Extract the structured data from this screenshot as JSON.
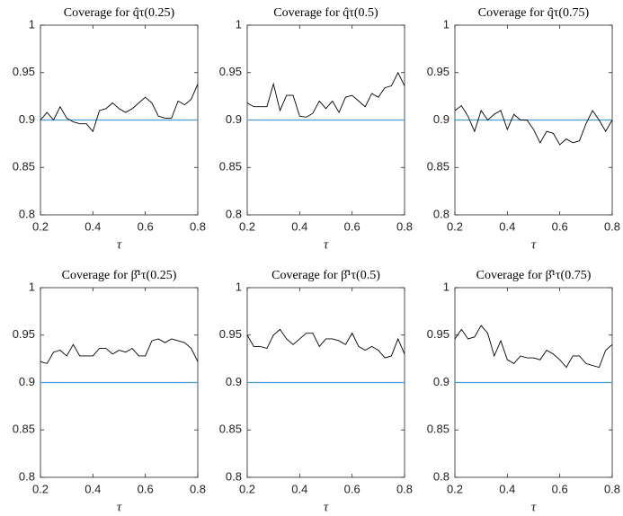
{
  "chart_data": [
    {
      "type": "line",
      "title": "Coverage for q̂τ(0.25)",
      "xlabel": "τ",
      "x": [
        0.2,
        0.225,
        0.25,
        0.275,
        0.3,
        0.325,
        0.35,
        0.375,
        0.4,
        0.425,
        0.45,
        0.475,
        0.5,
        0.525,
        0.55,
        0.575,
        0.6,
        0.625,
        0.65,
        0.675,
        0.7,
        0.725,
        0.75,
        0.775,
        0.8
      ],
      "series": [
        {
          "color": "#000000",
          "values": [
            0.9,
            0.908,
            0.9,
            0.914,
            0.902,
            0.898,
            0.896,
            0.896,
            0.888,
            0.91,
            0.912,
            0.918,
            0.912,
            0.908,
            0.912,
            0.918,
            0.924,
            0.918,
            0.904,
            0.902,
            0.902,
            0.92,
            0.916,
            0.922,
            0.938
          ]
        }
      ],
      "reference_line": {
        "value": 0.9,
        "color": "#4a9bd4"
      },
      "xlim": [
        0.2,
        0.8
      ],
      "xticks": [
        0.2,
        0.4,
        0.6,
        0.8
      ],
      "ylim": [
        0.8,
        1
      ],
      "yticks": [
        0.8,
        0.85,
        0.9,
        0.95,
        1
      ]
    },
    {
      "type": "line",
      "title": "Coverage for q̂τ(0.5)",
      "xlabel": "τ",
      "x": [
        0.2,
        0.225,
        0.25,
        0.275,
        0.3,
        0.325,
        0.35,
        0.375,
        0.4,
        0.425,
        0.45,
        0.475,
        0.5,
        0.525,
        0.55,
        0.575,
        0.6,
        0.625,
        0.65,
        0.675,
        0.7,
        0.725,
        0.75,
        0.775,
        0.8
      ],
      "series": [
        {
          "color": "#000000",
          "values": [
            0.918,
            0.914,
            0.914,
            0.914,
            0.938,
            0.91,
            0.926,
            0.926,
            0.904,
            0.903,
            0.907,
            0.92,
            0.912,
            0.92,
            0.908,
            0.924,
            0.926,
            0.92,
            0.914,
            0.928,
            0.924,
            0.934,
            0.936,
            0.95,
            0.936
          ]
        }
      ],
      "reference_line": {
        "value": 0.9,
        "color": "#4a9bd4"
      },
      "xlim": [
        0.2,
        0.8
      ],
      "xticks": [
        0.2,
        0.4,
        0.6,
        0.8
      ],
      "ylim": [
        0.8,
        1
      ],
      "yticks": [
        0.8,
        0.85,
        0.9,
        0.95,
        1
      ]
    },
    {
      "type": "line",
      "title": "Coverage for q̂τ(0.75)",
      "xlabel": "τ",
      "x": [
        0.2,
        0.225,
        0.25,
        0.275,
        0.3,
        0.325,
        0.35,
        0.375,
        0.4,
        0.425,
        0.45,
        0.475,
        0.5,
        0.525,
        0.55,
        0.575,
        0.6,
        0.625,
        0.65,
        0.675,
        0.7,
        0.725,
        0.75,
        0.775,
        0.8
      ],
      "series": [
        {
          "color": "#000000",
          "values": [
            0.91,
            0.915,
            0.904,
            0.888,
            0.91,
            0.9,
            0.906,
            0.91,
            0.89,
            0.906,
            0.9,
            0.9,
            0.89,
            0.876,
            0.888,
            0.886,
            0.874,
            0.88,
            0.876,
            0.878,
            0.896,
            0.91,
            0.9,
            0.888,
            0.9
          ]
        }
      ],
      "reference_line": {
        "value": 0.9,
        "color": "#4a9bd4"
      },
      "xlim": [
        0.2,
        0.8
      ],
      "xticks": [
        0.2,
        0.4,
        0.6,
        0.8
      ],
      "ylim": [
        0.8,
        1
      ],
      "yticks": [
        0.8,
        0.85,
        0.9,
        0.95,
        1
      ]
    },
    {
      "type": "line",
      "title": "Coverage for β̂¹τ(0.25)",
      "xlabel": "τ",
      "x": [
        0.2,
        0.225,
        0.25,
        0.275,
        0.3,
        0.325,
        0.35,
        0.375,
        0.4,
        0.425,
        0.45,
        0.475,
        0.5,
        0.525,
        0.55,
        0.575,
        0.6,
        0.625,
        0.65,
        0.675,
        0.7,
        0.725,
        0.75,
        0.775,
        0.8
      ],
      "series": [
        {
          "color": "#000000",
          "values": [
            0.922,
            0.92,
            0.932,
            0.934,
            0.928,
            0.94,
            0.928,
            0.928,
            0.928,
            0.936,
            0.936,
            0.93,
            0.934,
            0.932,
            0.936,
            0.928,
            0.928,
            0.944,
            0.946,
            0.942,
            0.946,
            0.944,
            0.942,
            0.936,
            0.922
          ]
        }
      ],
      "reference_line": {
        "value": 0.9,
        "color": "#4a9bd4"
      },
      "xlim": [
        0.2,
        0.8
      ],
      "xticks": [
        0.2,
        0.4,
        0.6,
        0.8
      ],
      "ylim": [
        0.8,
        1
      ],
      "yticks": [
        0.8,
        0.85,
        0.9,
        0.95,
        1
      ]
    },
    {
      "type": "line",
      "title": "Coverage for β̂¹τ(0.5)",
      "xlabel": "τ",
      "x": [
        0.2,
        0.225,
        0.25,
        0.275,
        0.3,
        0.325,
        0.35,
        0.375,
        0.4,
        0.425,
        0.45,
        0.475,
        0.5,
        0.525,
        0.55,
        0.575,
        0.6,
        0.625,
        0.65,
        0.675,
        0.7,
        0.725,
        0.75,
        0.775,
        0.8
      ],
      "series": [
        {
          "color": "#000000",
          "values": [
            0.95,
            0.938,
            0.938,
            0.936,
            0.95,
            0.956,
            0.946,
            0.94,
            0.946,
            0.952,
            0.952,
            0.938,
            0.946,
            0.946,
            0.944,
            0.94,
            0.952,
            0.938,
            0.934,
            0.938,
            0.934,
            0.926,
            0.928,
            0.946,
            0.93
          ]
        }
      ],
      "reference_line": {
        "value": 0.9,
        "color": "#4a9bd4"
      },
      "xlim": [
        0.2,
        0.8
      ],
      "xticks": [
        0.2,
        0.4,
        0.6,
        0.8
      ],
      "ylim": [
        0.8,
        1
      ],
      "yticks": [
        0.8,
        0.85,
        0.9,
        0.95,
        1
      ]
    },
    {
      "type": "line",
      "title": "Coverage for β̂¹τ(0.75)",
      "xlabel": "τ",
      "x": [
        0.2,
        0.225,
        0.25,
        0.275,
        0.3,
        0.325,
        0.35,
        0.375,
        0.4,
        0.425,
        0.45,
        0.475,
        0.5,
        0.525,
        0.55,
        0.575,
        0.6,
        0.625,
        0.65,
        0.675,
        0.7,
        0.725,
        0.75,
        0.775,
        0.8
      ],
      "series": [
        {
          "color": "#000000",
          "values": [
            0.946,
            0.956,
            0.946,
            0.948,
            0.96,
            0.952,
            0.928,
            0.944,
            0.924,
            0.92,
            0.928,
            0.926,
            0.926,
            0.924,
            0.934,
            0.93,
            0.924,
            0.916,
            0.928,
            0.928,
            0.92,
            0.918,
            0.916,
            0.934,
            0.94
          ]
        }
      ],
      "reference_line": {
        "value": 0.9,
        "color": "#4a9bd4"
      },
      "xlim": [
        0.2,
        0.8
      ],
      "xticks": [
        0.2,
        0.4,
        0.6,
        0.8
      ],
      "ylim": [
        0.8,
        1
      ],
      "yticks": [
        0.8,
        0.85,
        0.9,
        0.95,
        1
      ]
    }
  ]
}
